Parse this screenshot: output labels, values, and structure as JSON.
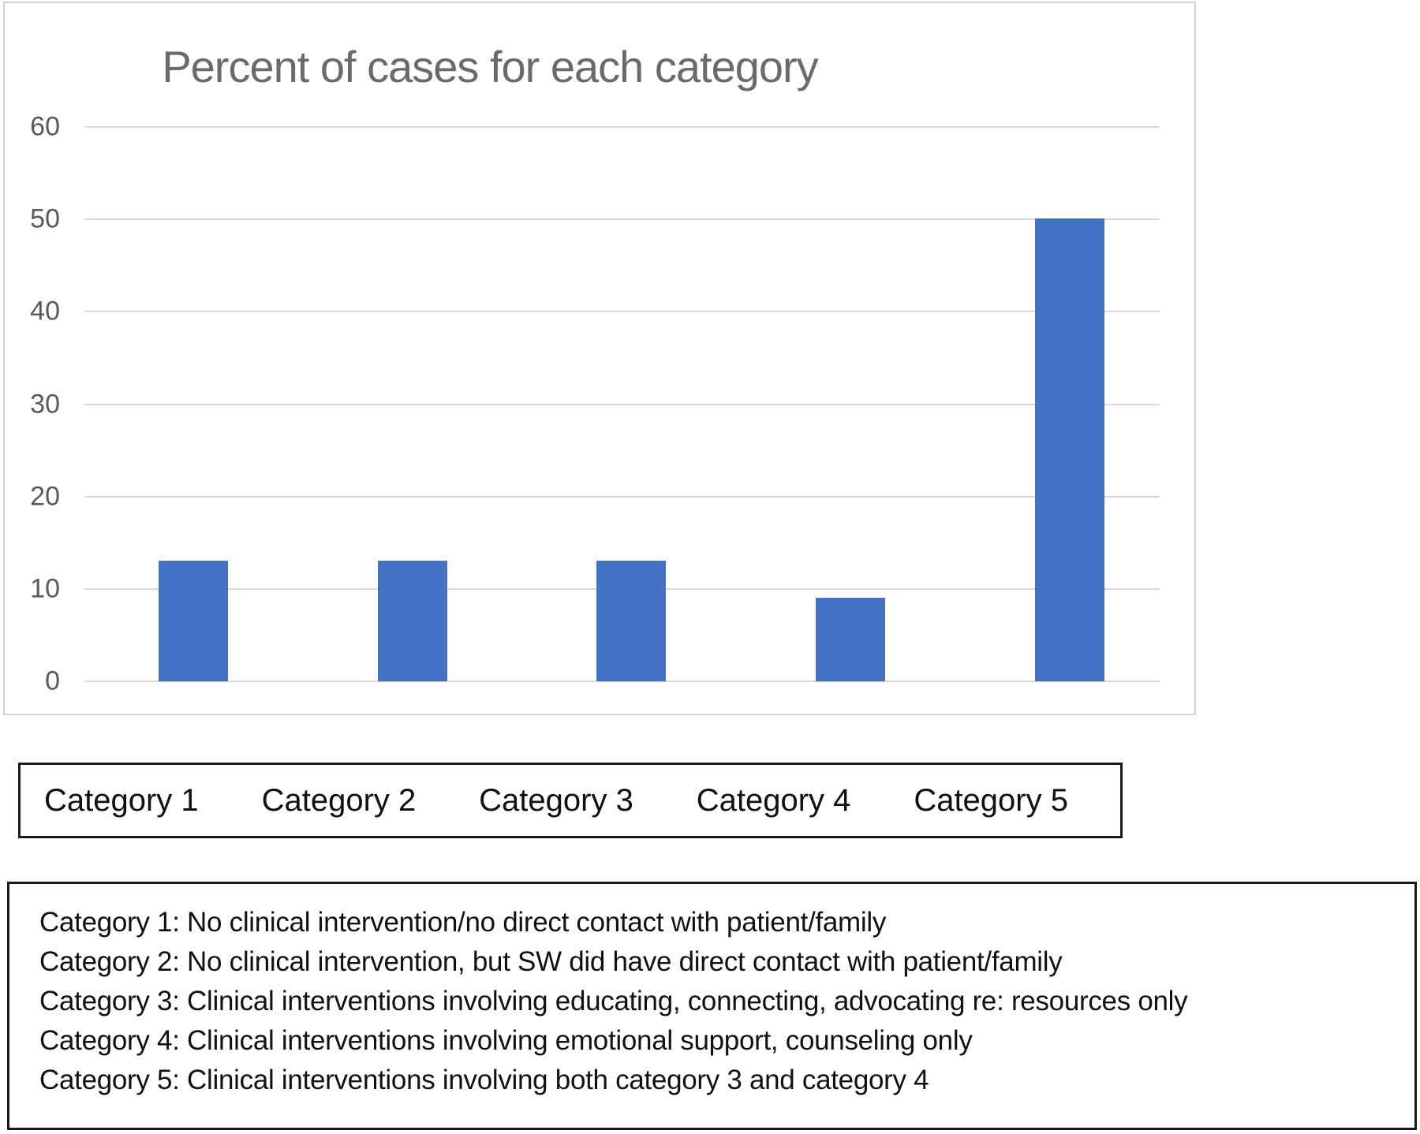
{
  "chart_data": {
    "type": "bar",
    "title": "Percent of cases for each category",
    "categories": [
      "Category 1",
      "Category 2",
      "Category 3",
      "Category 4",
      "Category 5"
    ],
    "values": [
      13,
      13,
      13,
      9,
      50
    ],
    "xlabel": "",
    "ylabel": "",
    "ylim": [
      0,
      60
    ],
    "yticks": [
      0,
      10,
      20,
      30,
      40,
      50,
      60
    ],
    "grid": "horizontal",
    "legend_position": "bottom-box",
    "bar_color": "#4472C4",
    "title_color": "#6a6a6a",
    "tick_label_color": "#595959",
    "gridline_color": "#d9d9d9"
  },
  "legend": {
    "items": [
      "Category 1",
      "Category 2",
      "Category 3",
      "Category 4",
      "Category 5"
    ]
  },
  "descriptions": {
    "lines": [
      "Category 1: No clinical intervention/no direct contact with patient/family",
      "Category 2: No clinical intervention, but SW did have direct contact with patient/family",
      "Category 3: Clinical interventions involving educating, connecting, advocating re: resources only",
      "Category 4: Clinical interventions involving emotional support, counseling only",
      "Category 5: Clinical interventions involving both category 3 and category 4"
    ]
  }
}
